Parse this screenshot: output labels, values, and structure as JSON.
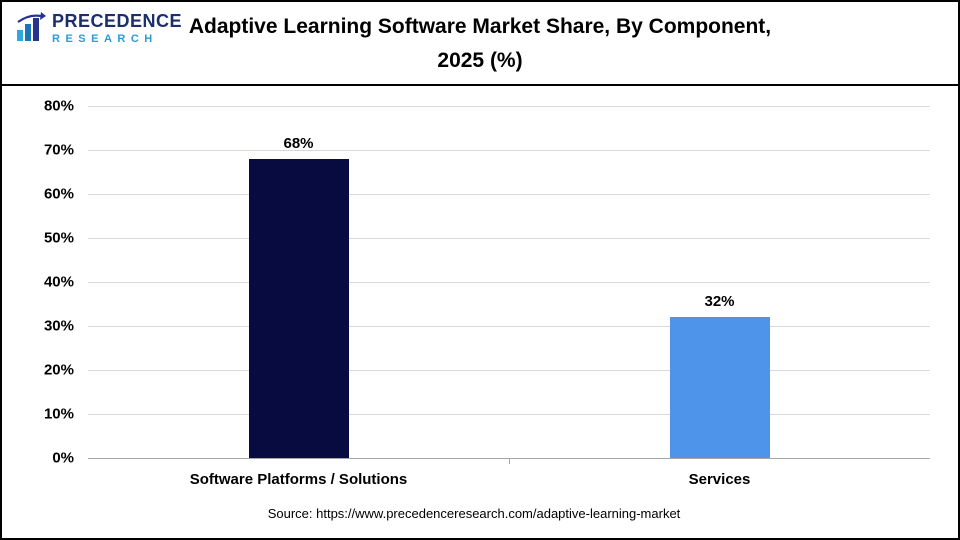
{
  "header": {
    "logo": {
      "line1": "PRECEDENCE",
      "line2": "RESEARCH"
    },
    "title_line1": "Adaptive Learning Software Market Share, By Component,",
    "title_line2": "2025 (%)"
  },
  "chart_data": {
    "type": "bar",
    "title": "Adaptive Learning Software Market Share, By Component, 2025 (%)",
    "categories": [
      "Software Platforms / Solutions",
      "Services"
    ],
    "values": [
      68,
      32
    ],
    "value_labels": [
      "68%",
      "32%"
    ],
    "colors": [
      "#070b40",
      "#4d94ea"
    ],
    "ylim": [
      0,
      80
    ],
    "yticks": [
      "80%",
      "70%",
      "60%",
      "50%",
      "40%",
      "30%",
      "20%",
      "10%",
      "0%"
    ],
    "grid": true,
    "legend": "none",
    "xlabel": "",
    "ylabel": ""
  },
  "footer": {
    "source": "Source: https://www.precedenceresearch.com/adaptive-learning-market"
  }
}
